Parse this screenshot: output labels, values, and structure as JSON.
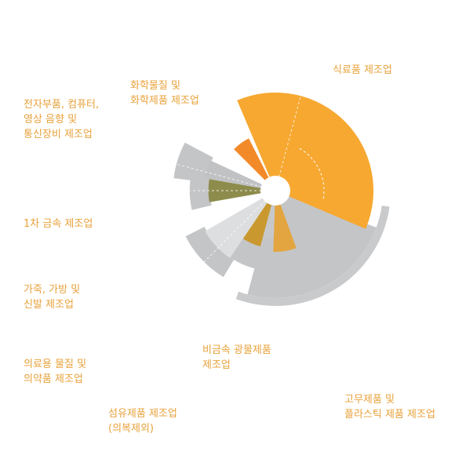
{
  "chart_data": {
    "type": "polar-area",
    "title": "",
    "categories": [
      {
        "id": "food",
        "lines": [
          "식료품 제조업"
        ],
        "value": 100,
        "color": "#f7a831",
        "back": 0
      },
      {
        "id": "rubber",
        "lines": [
          "고무제품 및",
          "플라스틱 제품 제조업"
        ],
        "value": 0,
        "color": "#c8c9cb",
        "back": 100
      },
      {
        "id": "nonmetal",
        "lines": [
          "비금속 광물제품",
          "제조업"
        ],
        "value": 56,
        "color": "#e3a53f",
        "back": 72
      },
      {
        "id": "textile",
        "lines": [
          "섬유제품 제조업",
          "(의복제외)"
        ],
        "value": 40,
        "color": "#c7c8ca",
        "back": 66
      },
      {
        "id": "medical",
        "lines": [
          "의료용 물질 및",
          "의약품 제조업"
        ],
        "value": 52,
        "color": "#c9992f",
        "back": 68
      },
      {
        "id": "leather",
        "lines": [
          "가죽, 가방 및",
          "신발 제조업"
        ],
        "value": 80,
        "color": "#dddedf",
        "back": 92
      },
      {
        "id": "metal",
        "lines": [
          "1차 금속 제조업"
        ],
        "value": 63,
        "color": "#8e8c4c",
        "back": 74
      },
      {
        "id": "electronic",
        "lines": [
          "전자부품, 컴퓨터,",
          "영상 음향 및",
          "통신장비 제조업"
        ],
        "value": 69,
        "color": "#c1c2c4",
        "back": 94
      },
      {
        "id": "chemical",
        "lines": [
          "화학물질 및",
          "화학제품 제조업"
        ],
        "value": 53,
        "color": "#f28a2a",
        "back": 0
      }
    ]
  }
}
